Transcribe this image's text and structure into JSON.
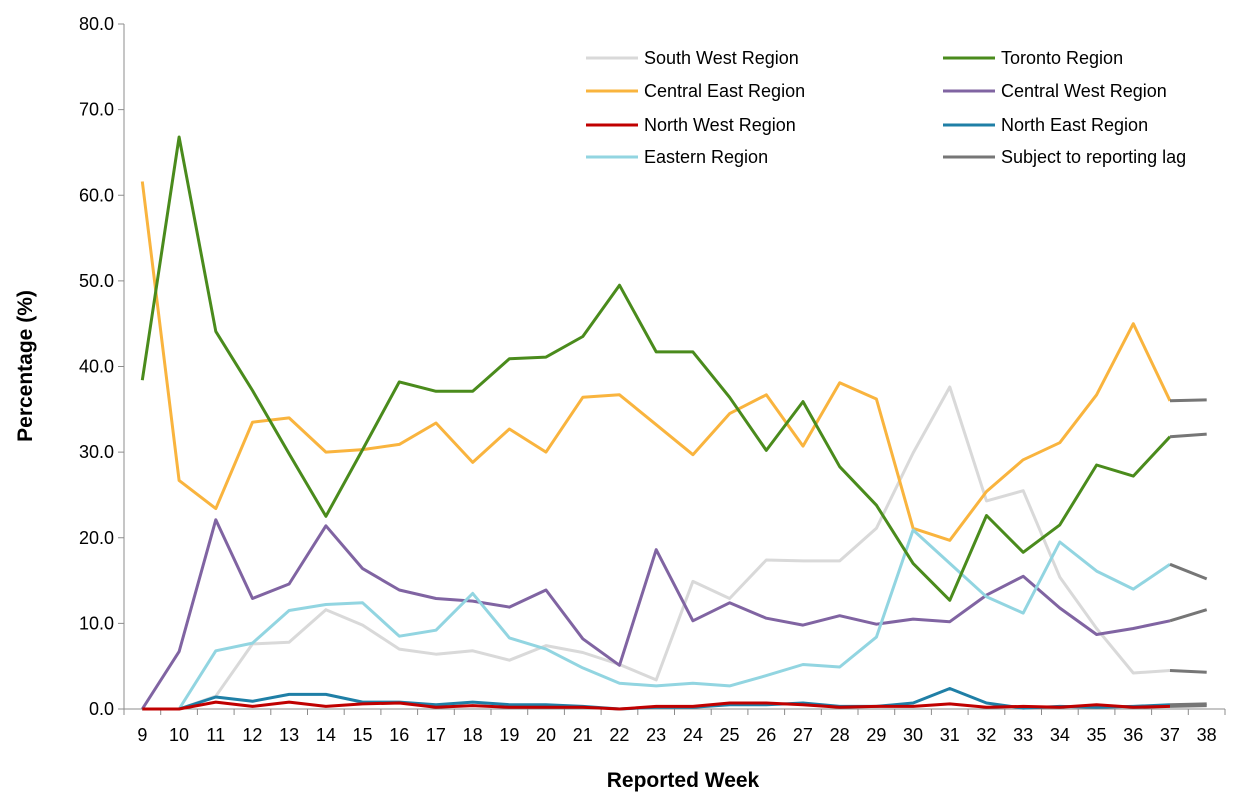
{
  "chart_data": {
    "type": "line",
    "xlabel": "Reported Week",
    "ylabel": "Percentage (%)",
    "ylim": [
      0,
      80
    ],
    "yticks": [
      "0.0",
      "10.0",
      "20.0",
      "30.0",
      "40.0",
      "50.0",
      "60.0",
      "70.0",
      "80.0"
    ],
    "x": [
      "9",
      "10",
      "11",
      "12",
      "13",
      "14",
      "15",
      "16",
      "17",
      "18",
      "19",
      "20",
      "21",
      "22",
      "23",
      "24",
      "25",
      "26",
      "27",
      "28",
      "29",
      "30",
      "31",
      "32",
      "33",
      "34",
      "35",
      "36",
      "37",
      "38"
    ],
    "grid": false,
    "legend": "top-right",
    "series": [
      {
        "name": "South West Region",
        "color": "#d9d9d9",
        "values": [
          0,
          0,
          1.5,
          7.6,
          7.8,
          11.6,
          9.8,
          7.0,
          6.4,
          6.8,
          5.7,
          7.4,
          6.6,
          5.2,
          3.4,
          14.9,
          12.9,
          17.4,
          17.3,
          17.3,
          21.1,
          29.9,
          37.6,
          24.3,
          25.5,
          15.4,
          9.4,
          4.2,
          4.5,
          4.3
        ]
      },
      {
        "name": "Toronto Region",
        "color": "#4a8b1c",
        "values": [
          38.4,
          66.8,
          44.1,
          37.2,
          29.8,
          22.5,
          30.3,
          38.2,
          37.1,
          37.1,
          40.9,
          41.1,
          43.5,
          49.5,
          41.7,
          41.7,
          36.4,
          30.2,
          35.9,
          28.3,
          23.8,
          17.0,
          12.7,
          22.6,
          18.3,
          21.5,
          28.5,
          27.2,
          31.8,
          32.1
        ]
      },
      {
        "name": "Central East Region",
        "color": "#f9b43e",
        "values": [
          61.6,
          26.7,
          23.4,
          33.5,
          34.0,
          30.0,
          30.3,
          30.9,
          33.4,
          28.8,
          32.7,
          30.0,
          36.4,
          36.7,
          33.2,
          29.7,
          34.5,
          36.7,
          30.7,
          38.1,
          36.2,
          21.1,
          19.7,
          25.4,
          29.1,
          31.1,
          36.7,
          45.0,
          36.0,
          36.1
        ]
      },
      {
        "name": "Central West Region",
        "color": "#8064a2",
        "values": [
          0,
          6.7,
          22.1,
          12.9,
          14.6,
          21.4,
          16.4,
          13.9,
          12.9,
          12.6,
          11.9,
          13.9,
          8.2,
          5.1,
          18.6,
          10.3,
          12.4,
          10.6,
          9.8,
          10.9,
          9.9,
          10.5,
          10.2,
          13.3,
          15.5,
          11.8,
          8.7,
          9.4,
          10.3,
          11.6
        ]
      },
      {
        "name": "North West Region",
        "color": "#c00000",
        "values": [
          0,
          0,
          0.8,
          0.3,
          0.8,
          0.3,
          0.6,
          0.7,
          0.2,
          0.4,
          0.2,
          0.2,
          0.2,
          0,
          0.3,
          0.3,
          0.7,
          0.7,
          0.5,
          0.2,
          0.3,
          0.3,
          0.6,
          0.2,
          0.3,
          0.2,
          0.5,
          0.2,
          0.3,
          0.4
        ]
      },
      {
        "name": "North East Region",
        "color": "#1f7fa6",
        "values": [
          0,
          0,
          1.4,
          0.9,
          1.7,
          1.7,
          0.8,
          0.8,
          0.5,
          0.8,
          0.5,
          0.5,
          0.3,
          0,
          0.2,
          0.2,
          0.5,
          0.5,
          0.7,
          0.3,
          0.3,
          0.7,
          2.4,
          0.7,
          0.1,
          0.3,
          0.2,
          0.3,
          0.5,
          0.6
        ]
      },
      {
        "name": "Eastern Region",
        "color": "#92d5e1",
        "values": [
          0,
          0,
          6.8,
          7.7,
          11.5,
          12.2,
          12.4,
          8.5,
          9.2,
          13.5,
          8.3,
          7.0,
          4.8,
          3.0,
          2.7,
          3.0,
          2.7,
          3.9,
          5.2,
          4.9,
          8.4,
          20.9,
          17.0,
          13.1,
          11.2,
          19.5,
          16.1,
          14.0,
          16.9,
          15.2
        ]
      }
    ],
    "lag_series": {
      "name": "Subject to reporting lag",
      "color": "#767676",
      "from_index": 28
    }
  }
}
